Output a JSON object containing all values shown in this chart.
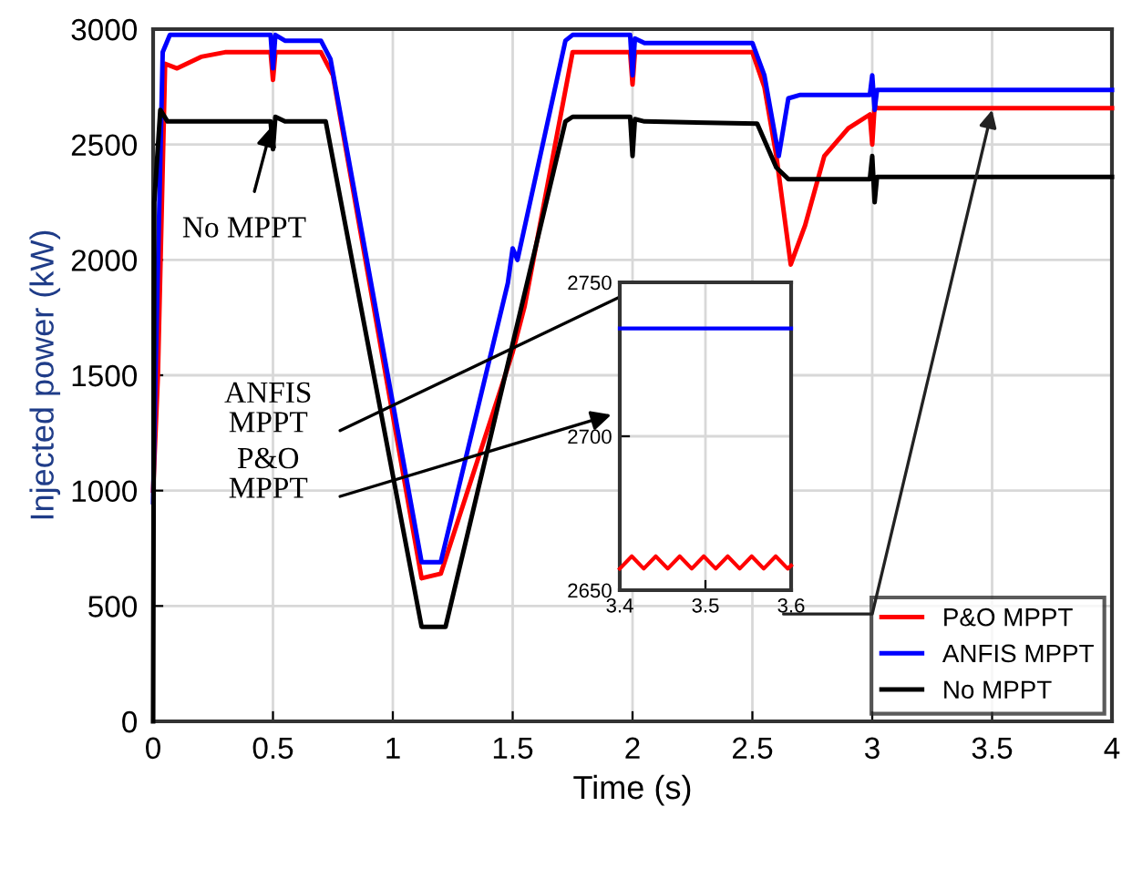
{
  "chart_data": [
    {
      "type": "line",
      "xlabel": "Time (s)",
      "ylabel": "Injected power (kW)",
      "xlim": [
        0,
        4
      ],
      "xticks": [
        0,
        0.5,
        1,
        1.5,
        2,
        2.5,
        3,
        3.5,
        4
      ],
      "ylim": [
        0,
        3000
      ],
      "yticks": [
        0,
        500,
        1000,
        1500,
        2000,
        2500,
        3000
      ],
      "grid": true,
      "legend": "bottom right",
      "series": [
        {
          "name": "P&O MPPT",
          "color": "#ff0000",
          "x": [
            0,
            0.02,
            0.05,
            0.1,
            0.2,
            0.3,
            0.49,
            0.5,
            0.51,
            0.7,
            0.75,
            1.12,
            1.2,
            1.5,
            1.55,
            1.75,
            1.99,
            2.0,
            2.01,
            2.5,
            2.55,
            2.6,
            2.66,
            2.72,
            2.8,
            2.9,
            2.99,
            3.0,
            3.01,
            3.02,
            4.0
          ],
          "values": [
            1000,
            1500,
            2850,
            2830,
            2880,
            2900,
            2900,
            2780,
            2900,
            2900,
            2800,
            620,
            640,
            1600,
            1800,
            2900,
            2900,
            2760,
            2900,
            2900,
            2750,
            2450,
            1980,
            2150,
            2450,
            2570,
            2630,
            2500,
            2670,
            2658,
            2658
          ]
        },
        {
          "name": "ANFIS MPPT",
          "color": "#0000ff",
          "x": [
            0,
            0.01,
            0.04,
            0.07,
            0.49,
            0.5,
            0.51,
            0.55,
            0.7,
            0.74,
            1.12,
            1.2,
            1.48,
            1.5,
            1.52,
            1.72,
            1.75,
            1.99,
            2.0,
            2.01,
            2.05,
            2.5,
            2.55,
            2.61,
            2.65,
            2.7,
            2.99,
            3.0,
            3.01,
            3.02,
            4.0
          ],
          "values": [
            950,
            1500,
            2900,
            2975,
            2975,
            2830,
            2975,
            2950,
            2950,
            2870,
            690,
            690,
            1900,
            2050,
            2000,
            2950,
            2975,
            2975,
            2800,
            2960,
            2940,
            2940,
            2800,
            2450,
            2700,
            2715,
            2715,
            2800,
            2650,
            2737,
            2737
          ]
        },
        {
          "name": "No MPPT",
          "color": "#000000",
          "x": [
            0,
            0.005,
            0.03,
            0.06,
            0.49,
            0.5,
            0.51,
            0.55,
            0.72,
            1.12,
            1.22,
            1.72,
            1.75,
            1.99,
            2.0,
            2.01,
            2.05,
            2.52,
            2.6,
            2.65,
            2.99,
            3.0,
            3.01,
            3.02,
            4.0
          ],
          "values": [
            0,
            2250,
            2650,
            2600,
            2600,
            2480,
            2620,
            2600,
            2600,
            410,
            410,
            2600,
            2620,
            2620,
            2450,
            2610,
            2600,
            2590,
            2400,
            2350,
            2350,
            2450,
            2250,
            2360,
            2360
          ]
        }
      ],
      "annotations": [
        {
          "text": "No MPPT",
          "x": 0.5,
          "y": 2600
        },
        "ANFIS\nMPPT",
        "P&O\nMPPT"
      ]
    },
    {
      "type": "line",
      "xlim": [
        3.4,
        3.6
      ],
      "xticks": [
        3.4,
        3.5,
        3.6
      ],
      "ylim": [
        2650,
        2750
      ],
      "yticks": [
        2650,
        2700,
        2750
      ],
      "grid": true,
      "series": [
        {
          "color": "#ff0000",
          "x": [
            3.4,
            3.414,
            3.428,
            3.442,
            3.456,
            3.47,
            3.484,
            3.498,
            3.512,
            3.526,
            3.54,
            3.554,
            3.568,
            3.582,
            3.596,
            3.6
          ],
          "values": [
            2657,
            2661,
            2657,
            2661,
            2657,
            2661,
            2657,
            2661,
            2657,
            2661,
            2657,
            2661,
            2657,
            2661,
            2657,
            2658
          ]
        },
        {
          "color": "#0000ff",
          "x": [
            3.4,
            3.6
          ],
          "values": [
            2735,
            2735
          ]
        }
      ]
    }
  ]
}
